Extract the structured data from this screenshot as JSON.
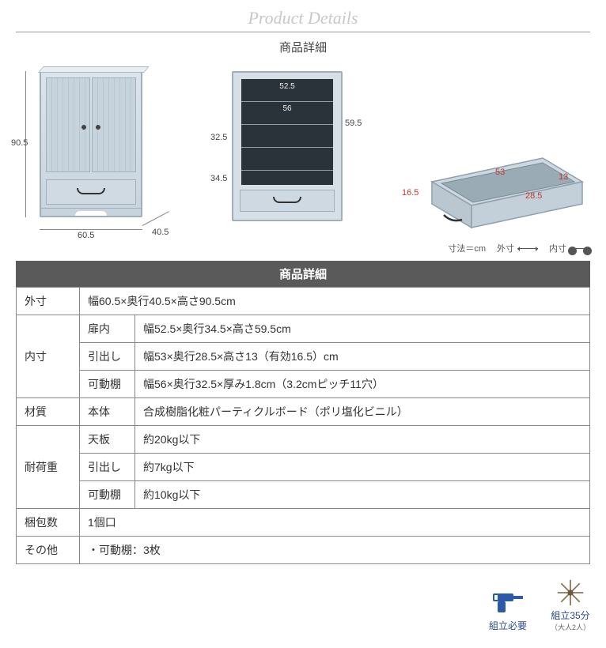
{
  "header": {
    "script_title": "Product Details",
    "subtitle": "商品詳細"
  },
  "palette": {
    "cabinet_fill": "#d0dae2",
    "cabinet_border": "#9fb0bc",
    "dark_inner": "#2a333a",
    "dim_text": "#444444",
    "dim_red": "#c0392b",
    "table_header_bg": "#5a5a5a",
    "table_header_fg": "#ffffff",
    "icon_blue": "#2a5aa8"
  },
  "diagrams": {
    "front": {
      "height_label": "90.5",
      "width_label": "60.5",
      "depth_label": "40.5"
    },
    "shelves": {
      "top_width": "52.5",
      "shelf_width": "56",
      "inner_height": "59.5",
      "shelf_depth": "32.5",
      "inner_depth": "34.5"
    },
    "drawer": {
      "outer_height": "16.5",
      "inner_width": "53",
      "inner_depth": "28.5",
      "inner_height": "13"
    }
  },
  "legend": {
    "unit": "寸法＝cm",
    "outer": "外寸",
    "inner": "内寸"
  },
  "spec_table": {
    "header": "商品詳細",
    "rows": [
      {
        "label": "外寸",
        "sub": "",
        "value": "幅60.5×奥行40.5×高さ90.5cm",
        "rowspan": 1
      },
      {
        "label": "内寸",
        "sub": "扉内",
        "value": "幅52.5×奥行34.5×高さ59.5cm",
        "rowspan": 3
      },
      {
        "label": "",
        "sub": "引出し",
        "value": "幅53×奥行28.5×高さ13（有効16.5）cm"
      },
      {
        "label": "",
        "sub": "可動棚",
        "value": "幅56×奥行32.5×厚み1.8cm（3.2cmピッチ11穴）"
      },
      {
        "label": "材質",
        "sub": "本体",
        "value": "合成樹脂化粧パーティクルボード（ポリ塩化ビニル）",
        "rowspan": 1
      },
      {
        "label": "耐荷重",
        "sub": "天板",
        "value": "約20kg以下",
        "rowspan": 3
      },
      {
        "label": "",
        "sub": "引出し",
        "value": "約7kg以下"
      },
      {
        "label": "",
        "sub": "可動棚",
        "value": "約10kg以下"
      },
      {
        "label": "梱包数",
        "sub": "",
        "value": "1個口",
        "rowspan": 1
      },
      {
        "label": "その他",
        "sub": "",
        "value": "・可動棚：3枚",
        "rowspan": 1
      }
    ]
  },
  "footer": {
    "assembly_required": "組立必要",
    "assembly_time": "組立35分",
    "assembly_people": "（大人2人）"
  }
}
